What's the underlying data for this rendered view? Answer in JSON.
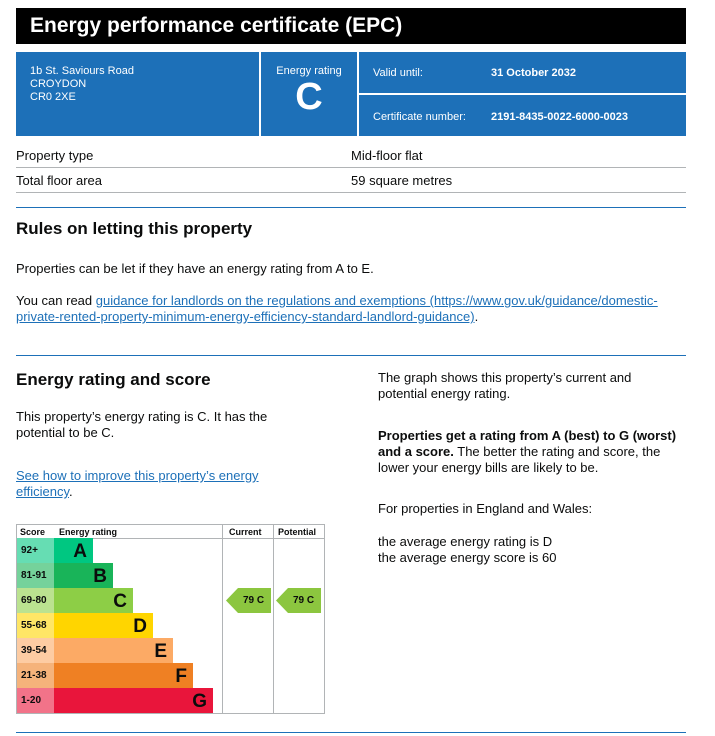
{
  "title": "Energy performance certificate (EPC)",
  "address": {
    "line1": "1b St. Saviours Road",
    "line2": "CROYDON",
    "line3": "CR0 2XE"
  },
  "rating": {
    "label": "Energy rating",
    "value": "C"
  },
  "valid": {
    "label": "Valid until:",
    "value": "31 October 2032"
  },
  "certificate": {
    "label": "Certificate number:",
    "value": "2191-8435-0022-6000-0023"
  },
  "property": [
    {
      "label": "Property type",
      "value": "Mid-floor flat"
    },
    {
      "label": "Total floor area",
      "value": "59 square metres"
    }
  ],
  "rules": {
    "heading": "Rules on letting this property",
    "p1": "Properties can be let if they have an energy rating from A to E.",
    "p2_prefix": "You can read ",
    "link": "guidance for landlords on the regulations and exemptions (https://www.gov.uk/guidance/domestic-private-rented-property-minimum-energy-efficiency-standard-landlord-guidance)",
    "p2_suffix": "."
  },
  "score": {
    "heading": "Energy rating and score",
    "p1": "This property’s energy rating is C. It has the potential to be C.",
    "link": "See how to improve this property’s energy efficiency",
    "link_suffix": ".",
    "r1": "The graph shows this property’s current and potential energy rating.",
    "r2_bold": "Properties get a rating from A (best) to G (worst) and a score.",
    "r2": " The better the rating and score, the lower your energy bills are likely to be.",
    "r3": "For properties in England and Wales:",
    "r4": "the average energy rating is D",
    "r5": "the average energy score is 60"
  },
  "chart_data": {
    "type": "table",
    "headers": [
      "Score",
      "Energy rating",
      "Current",
      "Potential"
    ],
    "bands": [
      {
        "score": "92+",
        "letter": "A",
        "color": "#00c781",
        "light": "#66ddb3"
      },
      {
        "score": "81-91",
        "letter": "B",
        "color": "#19b459",
        "light": "#75d29b"
      },
      {
        "score": "69-80",
        "letter": "C",
        "color": "#8dce46",
        "light": "#bbe290"
      },
      {
        "score": "55-68",
        "letter": "D",
        "color": "#ffd500",
        "light": "#ffe666"
      },
      {
        "score": "39-54",
        "letter": "E",
        "color": "#fcaa65",
        "light": "#fdcca3"
      },
      {
        "score": "21-38",
        "letter": "F",
        "color": "#ef8023",
        "light": "#f5b37b"
      },
      {
        "score": "1-20",
        "letter": "G",
        "color": "#e9153b",
        "light": "#f27389"
      }
    ],
    "current": {
      "score": 79,
      "letter": "C",
      "label": "79  C"
    },
    "potential": {
      "score": 79,
      "letter": "C",
      "label": "79  C"
    }
  }
}
